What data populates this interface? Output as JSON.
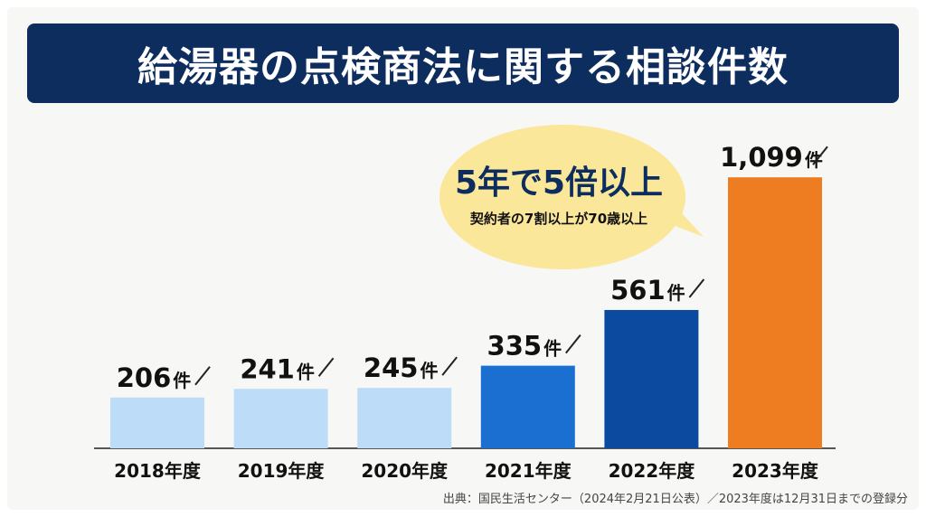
{
  "title": "給湯器の点検商法に関する相談件数",
  "callout": {
    "headline": "5年で5倍以上",
    "subtext": "契約者の7割以上が70歳以上"
  },
  "source": "出典：国民生活センター（2024年2月21日公表）／2023年度は12月31日までの登録分",
  "colors": {
    "title_bg": "#0c2d5e",
    "bubble": "#fbe79a",
    "bar_light": "#bcdcf8",
    "bar_mid": "#1a6fd0",
    "bar_dark": "#0c4aa0",
    "bar_orange": "#ee7d22"
  },
  "chart_data": {
    "type": "bar",
    "categories": [
      "2018年度",
      "2019年度",
      "2020年度",
      "2021年度",
      "2022年度",
      "2023年度"
    ],
    "values": [
      206,
      241,
      245,
      335,
      561,
      1099
    ],
    "value_labels": [
      "206",
      "241",
      "245",
      "335",
      "561",
      "1,099"
    ],
    "unit": "件",
    "bar_colors": [
      "#bcdcf8",
      "#bcdcf8",
      "#bcdcf8",
      "#1a6fd0",
      "#0c4aa0",
      "#ee7d22"
    ],
    "ylim": [
      0,
      1250
    ],
    "grid": false,
    "legend": "none"
  }
}
